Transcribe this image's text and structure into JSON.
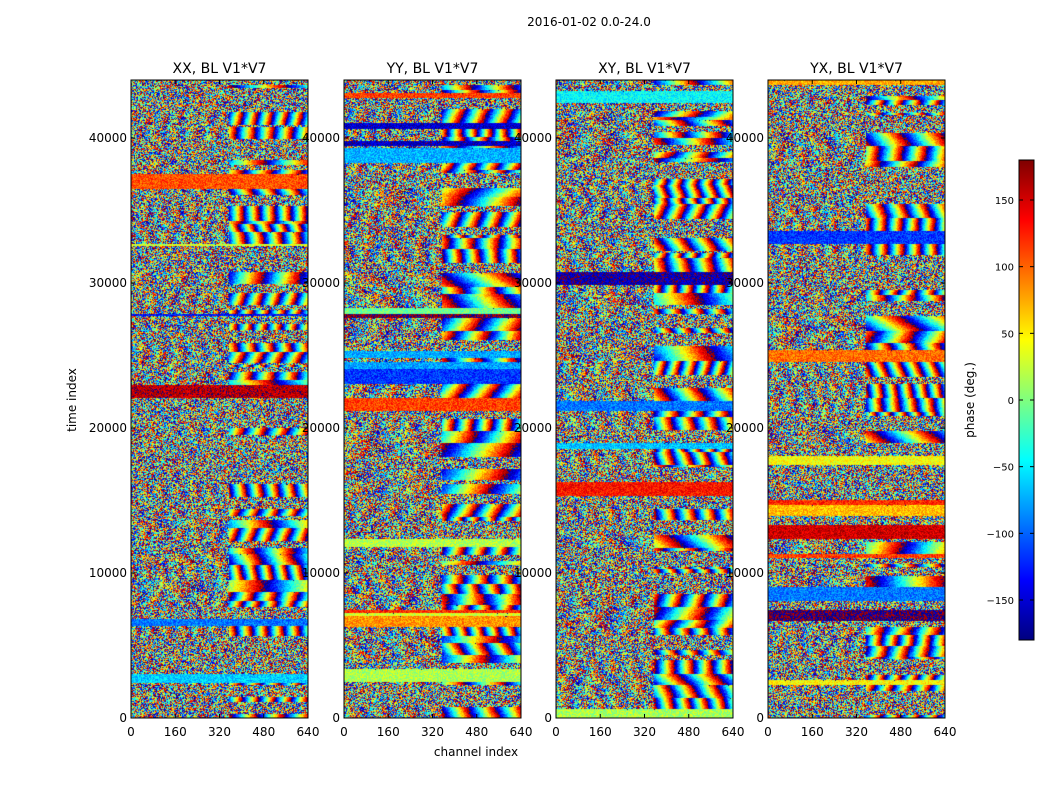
{
  "chart_data": {
    "type": "heatmap",
    "suptitle": "2016-01-02 0.0-24.0",
    "xlabel": "channel index",
    "ylabel": "time index",
    "xlim": [
      0,
      640
    ],
    "ylim": [
      0,
      44000
    ],
    "x_ticks": [
      0,
      160,
      320,
      480,
      640
    ],
    "x_tick_labels": [
      "0",
      "160",
      "320",
      "480",
      "640"
    ],
    "y_ticks": [
      0,
      10000,
      20000,
      30000,
      40000
    ],
    "y_tick_labels": [
      "0",
      "10000",
      "20000",
      "30000",
      "40000"
    ],
    "panels": [
      {
        "title": "XX, BL V1*V7",
        "seed": 11
      },
      {
        "title": "YY, BL V1*V7",
        "seed": 23
      },
      {
        "title": "XY, BL V1*V7",
        "seed": 37
      },
      {
        "title": "YX, BL V1*V7",
        "seed": 53
      }
    ],
    "colorbar": {
      "label": "phase (deg.)",
      "range": [
        -180,
        180
      ],
      "ticks": [
        150,
        100,
        50,
        0,
        -50,
        -100,
        -150
      ],
      "tick_labels": [
        "150",
        "100",
        "50",
        "0",
        "−50",
        "−100",
        "−150"
      ],
      "colormap": "jet"
    },
    "colors": {
      "jet_stops": [
        "#00007f",
        "#0000ff",
        "#007fff",
        "#00ffff",
        "#7fff7f",
        "#ffff00",
        "#ff7f00",
        "#ff0000",
        "#7f0000"
      ]
    }
  }
}
